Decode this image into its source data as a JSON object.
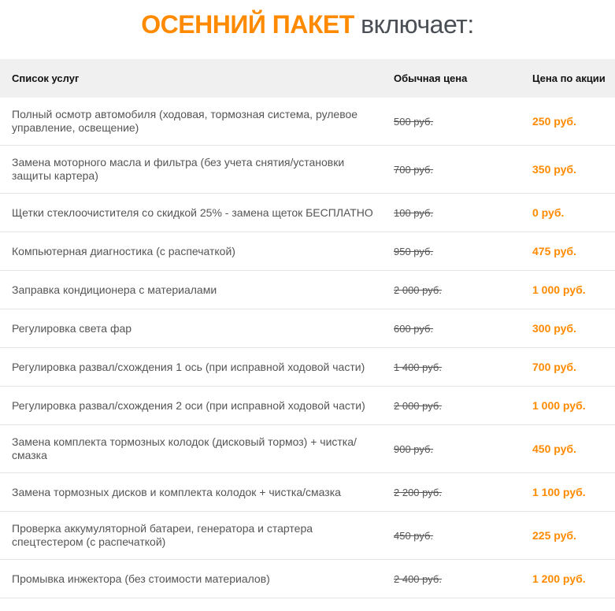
{
  "title": {
    "accent": "ОСЕННИЙ ПАКЕТ",
    "rest": " включает:"
  },
  "colors": {
    "accent": "#ff8a00",
    "header_bg": "#f0f0f0"
  },
  "table": {
    "headers": [
      "Список услуг",
      "Обычная цена",
      "Цена по акции"
    ],
    "rows": [
      {
        "service": "Полный осмотр автомобиля (ходовая, тормозная система, рулевое управление, освещение)",
        "old": "500 руб.",
        "new": "250 руб."
      },
      {
        "service": "Замена моторного масла и фильтра (без учета снятия/установки защиты картера)",
        "old": "700 руб.",
        "new": "350 руб."
      },
      {
        "service": "Щетки стеклоочистителя со скидкой 25% - замена щеток БЕСПЛАТНО",
        "old": "100 руб.",
        "new": "0 руб."
      },
      {
        "service": "Компьютерная диагностика (с распечаткой)",
        "old": "950 руб.",
        "new": "475 руб."
      },
      {
        "service": "Заправка кондиционера с материалами",
        "old": "2 000 руб.",
        "new": "1 000 руб."
      },
      {
        "service": "Регулировка света фар",
        "old": "600 руб.",
        "new": "300 руб."
      },
      {
        "service": "Регулировка развал/схождения 1 ось (при исправной ходовой части)",
        "old": "1 400 руб.",
        "new": "700 руб."
      },
      {
        "service": "Регулировка развал/схождения 2 оси (при исправной ходовой части)",
        "old": "2 000 руб.",
        "new": "1 000 руб."
      },
      {
        "service": "Замена комплекта тормозных колодок (дисковый тормоз) + чистка/смазка",
        "old": "900 руб.",
        "new": "450 руб."
      },
      {
        "service": "Замена тормозных дисков и комплекта колодок + чистка/смазка",
        "old": "2 200 руб.",
        "new": "1 100 руб."
      },
      {
        "service": "Проверка аккумуляторной батареи, генератора и стартера спецтестером (с распечаткой)",
        "old": "450 руб.",
        "new": "225 руб."
      },
      {
        "service": "Промывка инжектора (без стоимости материалов)",
        "old": "2 400 руб.",
        "new": "1 200 руб."
      }
    ]
  }
}
